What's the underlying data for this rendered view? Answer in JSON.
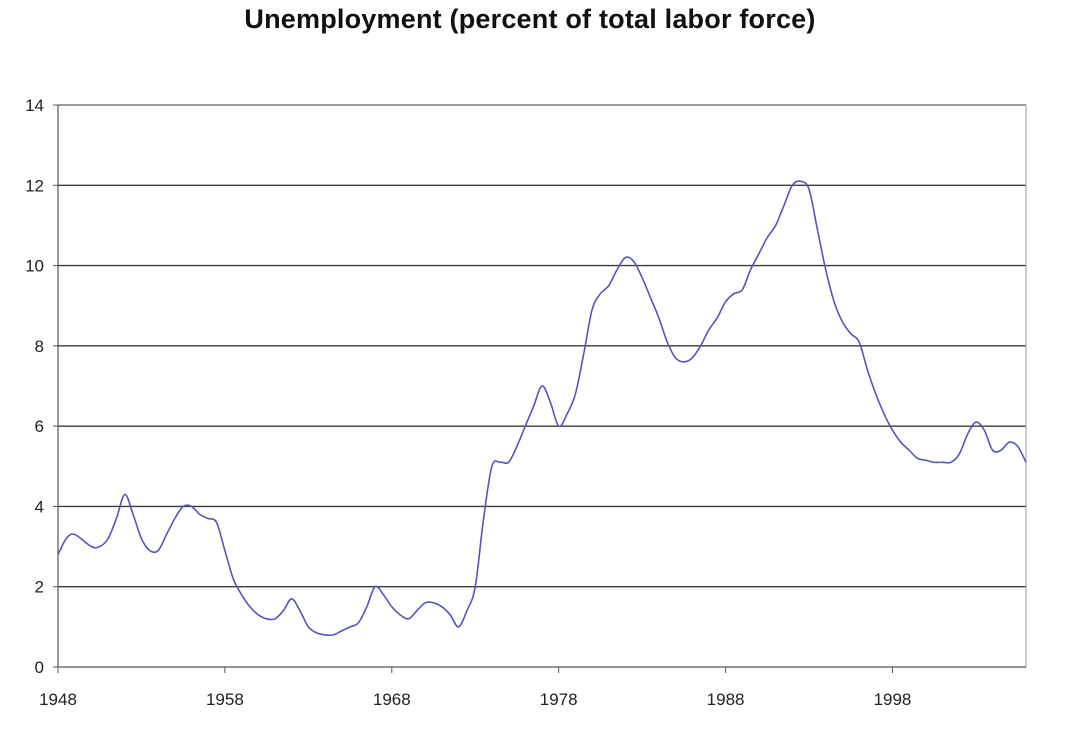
{
  "title": "Unemployment (percent of total labor force)",
  "chart_data": {
    "type": "line",
    "title": "Unemployment (percent of total labor force)",
    "xlabel": "",
    "ylabel": "",
    "xlim": [
      1948,
      2006
    ],
    "ylim": [
      0,
      14
    ],
    "x_ticks": [
      1948,
      1958,
      1968,
      1978,
      1988,
      1998
    ],
    "y_ticks": [
      0,
      2,
      4,
      6,
      8,
      10,
      12,
      14
    ],
    "grid": "horizontal",
    "legend": "none",
    "series": [
      {
        "color": "#5555bb",
        "x": [
          1948,
          1948.5,
          1949,
          1950,
          1950.5,
          1951,
          1951.5,
          1952,
          1952.5,
          1953,
          1953.5,
          1954,
          1954.5,
          1955,
          1955.5,
          1956,
          1956.5,
          1957,
          1957.5,
          1958,
          1958.5,
          1959,
          1959.5,
          1960,
          1960.5,
          1961,
          1961.5,
          1962,
          1962.5,
          1963,
          1963.5,
          1964,
          1964.5,
          1965,
          1965.5,
          1966,
          1966.5,
          1967,
          1967.5,
          1968,
          1968.5,
          1969,
          1969.5,
          1970,
          1970.5,
          1971,
          1971.5,
          1972,
          1972.5,
          1973,
          1973.5,
          1974,
          1974.5,
          1975,
          1975.5,
          1976,
          1976.5,
          1977,
          1977.5,
          1978,
          1978.5,
          1979,
          1979.5,
          1980,
          1980.5,
          1981,
          1981.5,
          1982,
          1982.5,
          1983,
          1983.5,
          1984,
          1984.5,
          1985,
          1985.5,
          1986,
          1986.5,
          1987,
          1987.5,
          1988,
          1988.5,
          1989,
          1989.5,
          1990,
          1990.5,
          1991,
          1991.5,
          1992,
          1992.5,
          1993,
          1993.5,
          1994,
          1994.5,
          1995,
          1995.5,
          1996,
          1996.5,
          1997,
          1997.5,
          1998,
          1998.5,
          1999,
          1999.5,
          2000,
          2000.5,
          2001,
          2001.5,
          2002,
          2002.5,
          2003,
          2003.5,
          2004,
          2004.5,
          2005,
          2005.5,
          2006
        ],
        "values": [
          2.8,
          3.2,
          3.3,
          3.0,
          3.0,
          3.2,
          3.7,
          4.3,
          3.8,
          3.2,
          2.9,
          2.9,
          3.3,
          3.7,
          4.0,
          4.0,
          3.8,
          3.7,
          3.6,
          2.9,
          2.2,
          1.8,
          1.5,
          1.3,
          1.2,
          1.2,
          1.4,
          1.7,
          1.4,
          1.0,
          0.85,
          0.8,
          0.8,
          0.9,
          1.0,
          1.1,
          1.5,
          2.0,
          1.8,
          1.5,
          1.3,
          1.2,
          1.4,
          1.6,
          1.6,
          1.5,
          1.3,
          1.0,
          1.4,
          2.0,
          3.7,
          5.0,
          5.1,
          5.1,
          5.5,
          6.0,
          6.5,
          7.0,
          6.6,
          6.0,
          6.3,
          6.8,
          7.8,
          8.9,
          9.3,
          9.5,
          9.9,
          10.2,
          10.1,
          9.7,
          9.2,
          8.7,
          8.1,
          7.7,
          7.6,
          7.7,
          8.0,
          8.4,
          8.7,
          9.1,
          9.3,
          9.4,
          9.9,
          10.3,
          10.7,
          11.0,
          11.5,
          12.0,
          12.1,
          11.9,
          10.9,
          9.9,
          9.1,
          8.6,
          8.3,
          8.1,
          7.4,
          6.8,
          6.3,
          5.9,
          5.6,
          5.4,
          5.2,
          5.15,
          5.1,
          5.1,
          5.1,
          5.3,
          5.8,
          6.1,
          5.9,
          5.4,
          5.4,
          5.6,
          5.5,
          5.1
        ]
      }
    ]
  }
}
